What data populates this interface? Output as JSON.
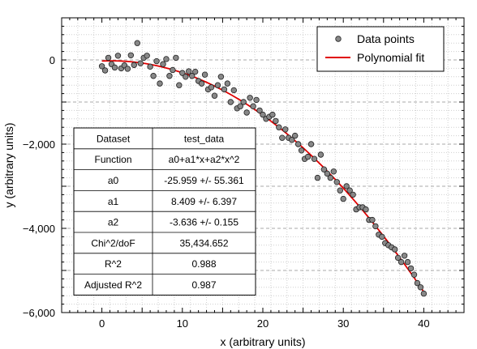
{
  "chart_data": {
    "type": "scatter",
    "xlabel": "x (arbitrary units)",
    "ylabel": "y (arbitrary units)",
    "xlim": [
      -5,
      45
    ],
    "ylim": [
      -6000,
      1000
    ],
    "grid": true,
    "legend_position": "top-right",
    "x_ticks": [
      0,
      10,
      20,
      30,
      40
    ],
    "x_tick_labels": [
      "0",
      "10",
      "20",
      "30",
      "40"
    ],
    "y_ticks": [
      -6000,
      -4000,
      -2000,
      0
    ],
    "y_tick_labels": [
      "−6,000",
      "−4,000",
      "−2,000",
      "0"
    ],
    "series": [
      {
        "name": "Data points",
        "kind": "scatter",
        "color": "#888888",
        "x": [
          0,
          0.4,
          0.8,
          1.2,
          1.6,
          2.0,
          2.4,
          2.8,
          3.2,
          3.6,
          4.0,
          4.4,
          4.8,
          5.2,
          5.6,
          6.0,
          6.4,
          6.8,
          7.2,
          7.6,
          8.0,
          8.4,
          8.8,
          9.2,
          9.6,
          10.0,
          10.4,
          10.8,
          11.2,
          11.6,
          12.0,
          12.4,
          12.8,
          13.2,
          13.6,
          14.0,
          14.4,
          14.8,
          15.2,
          15.6,
          16.0,
          16.4,
          16.8,
          17.2,
          17.6,
          18.0,
          18.4,
          18.8,
          19.2,
          19.6,
          20.0,
          20.4,
          20.8,
          21.2,
          21.6,
          22.0,
          22.4,
          22.8,
          23.2,
          23.6,
          24.0,
          24.4,
          24.8,
          25.2,
          25.6,
          26.0,
          26.4,
          26.8,
          27.2,
          27.6,
          28.0,
          28.4,
          28.8,
          29.2,
          29.6,
          30.0,
          30.4,
          30.8,
          31.2,
          31.6,
          32.0,
          32.4,
          32.8,
          33.2,
          33.6,
          34.0,
          34.4,
          34.8,
          35.2,
          35.6,
          36.0,
          36.4,
          36.8,
          37.2,
          37.6,
          38.0,
          38.4,
          38.8,
          39.2,
          39.6,
          40.0
        ],
        "y": [
          -150,
          -250,
          50,
          -100,
          -180,
          100,
          -200,
          -130,
          -210,
          110,
          -120,
          400,
          -80,
          50,
          100,
          -160,
          -380,
          -30,
          -560,
          -100,
          20,
          -380,
          -240,
          50,
          -600,
          -310,
          -400,
          -270,
          -380,
          -280,
          -500,
          -560,
          -350,
          -700,
          -650,
          -850,
          -600,
          -400,
          -700,
          -560,
          -1000,
          -720,
          -1150,
          -1100,
          -1000,
          -1250,
          -900,
          -1100,
          -950,
          -1200,
          -1300,
          -1400,
          -1350,
          -1300,
          -1450,
          -1600,
          -1850,
          -1650,
          -1850,
          -1900,
          -1800,
          -2000,
          -2150,
          -2350,
          -2300,
          -2000,
          -2350,
          -2800,
          -2250,
          -2600,
          -2700,
          -2800,
          -2650,
          -2900,
          -3100,
          -3300,
          -3000,
          -3100,
          -3200,
          -3550,
          -3500,
          -3500,
          -3550,
          -3800,
          -3800,
          -3950,
          -4150,
          -4200,
          -4350,
          -4400,
          -4450,
          -4500,
          -4700,
          -4800,
          -4650,
          -4800,
          -4950,
          -5100,
          -5300,
          -5400,
          -5550
        ]
      },
      {
        "name": "Polynomial fit",
        "kind": "line",
        "color": "#e00000",
        "equation": "a0+a1*x+a2*x^2",
        "coefficients": {
          "a0": -25.959,
          "a1": 8.409,
          "a2": -3.636
        }
      }
    ],
    "results_table": {
      "header": [
        "Dataset",
        "test_data"
      ],
      "rows": [
        [
          "Function",
          "a0+a1*x+a2*x^2"
        ],
        [
          "a0",
          "-25.959 +/- 55.361"
        ],
        [
          "a1",
          "8.409 +/- 6.397"
        ],
        [
          "a2",
          "-3.636 +/- 0.155"
        ],
        [
          "Chi^2/doF",
          "35,434.652"
        ],
        [
          "R^2",
          "0.988"
        ],
        [
          "Adjusted R^2",
          "0.987"
        ]
      ]
    }
  }
}
